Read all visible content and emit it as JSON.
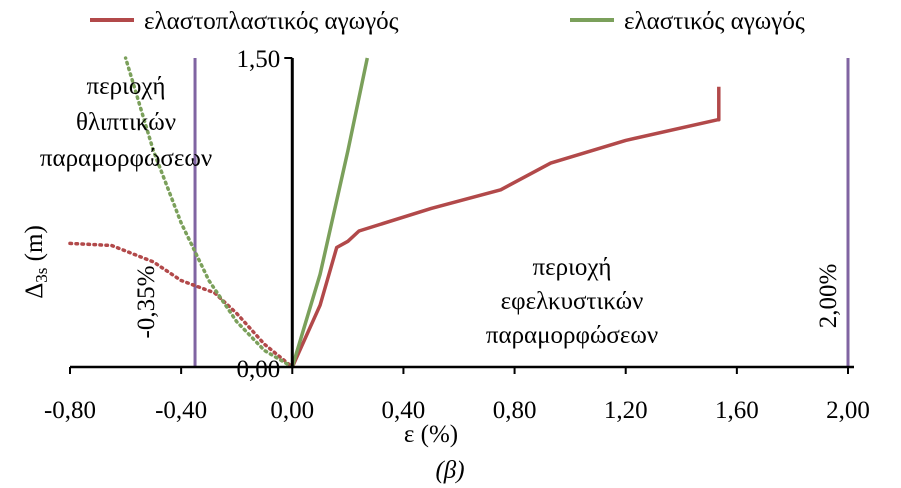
{
  "chart_data": {
    "type": "line",
    "xlabel": "ε (%)",
    "ylabel_main": "Δ",
    "ylabel_sub": "3s",
    "ylabel_unit": " (m)",
    "caption": "(β)",
    "xlim": [
      -0.8,
      2.0
    ],
    "ylim": [
      0,
      1.5
    ],
    "x_ticks": [
      {
        "value": -0.8,
        "label": "-0,80"
      },
      {
        "value": -0.4,
        "label": "-0,40"
      },
      {
        "value": 0.0,
        "label": "0,00"
      },
      {
        "value": 0.4,
        "label": "0,40"
      },
      {
        "value": 0.8,
        "label": "0,80"
      },
      {
        "value": 1.2,
        "label": "1,20"
      },
      {
        "value": 1.6,
        "label": "1,60"
      },
      {
        "value": 2.0,
        "label": "2,00"
      }
    ],
    "y_ticks": [
      {
        "value": 0.0,
        "label": "0,00"
      },
      {
        "value": 1.5,
        "label": "1,50"
      }
    ],
    "legend_position": "top",
    "series": [
      {
        "name": "ελαστοπλαστικός αγωγός",
        "color": "#b2494a",
        "solid": [
          [
            0,
            0
          ],
          [
            0.1,
            0.3
          ],
          [
            0.16,
            0.58
          ],
          [
            0.2,
            0.61
          ],
          [
            0.24,
            0.66
          ],
          [
            0.5,
            0.77
          ],
          [
            0.75,
            0.86
          ],
          [
            0.93,
            0.99
          ],
          [
            1.2,
            1.1
          ],
          [
            1.53,
            1.2
          ],
          [
            1.535,
            1.2
          ],
          [
            1.535,
            1.36
          ]
        ],
        "dotted": [
          [
            -0.8,
            0.6
          ],
          [
            -0.65,
            0.59
          ],
          [
            -0.5,
            0.51
          ],
          [
            -0.4,
            0.42
          ],
          [
            -0.28,
            0.36
          ],
          [
            -0.2,
            0.26
          ],
          [
            -0.1,
            0.11
          ],
          [
            0,
            0
          ]
        ]
      },
      {
        "name": "ελαστικός αγωγός",
        "color": "#7ba05b",
        "solid": [
          [
            0,
            0
          ],
          [
            0.1,
            0.45
          ],
          [
            0.2,
            1.05
          ],
          [
            0.27,
            1.5
          ]
        ],
        "dotted": [
          [
            0,
            0
          ],
          [
            -0.1,
            0.08
          ],
          [
            -0.2,
            0.22
          ],
          [
            -0.3,
            0.42
          ],
          [
            -0.4,
            0.7
          ],
          [
            -0.5,
            1.05
          ],
          [
            -0.6,
            1.5
          ]
        ]
      }
    ],
    "reference_lines": [
      {
        "x": -0.35,
        "label": "-0,35%",
        "color": "#8064a2"
      },
      {
        "x": 2.0,
        "label": "2,00%",
        "color": "#8064a2"
      }
    ],
    "annotations": {
      "compressive": [
        "περιοχή",
        "θλιπτικών",
        "παραμορφώσεων"
      ],
      "tensile": [
        "περιοχή",
        "εφελκυστικών",
        "παραμορφώσεων"
      ]
    }
  }
}
